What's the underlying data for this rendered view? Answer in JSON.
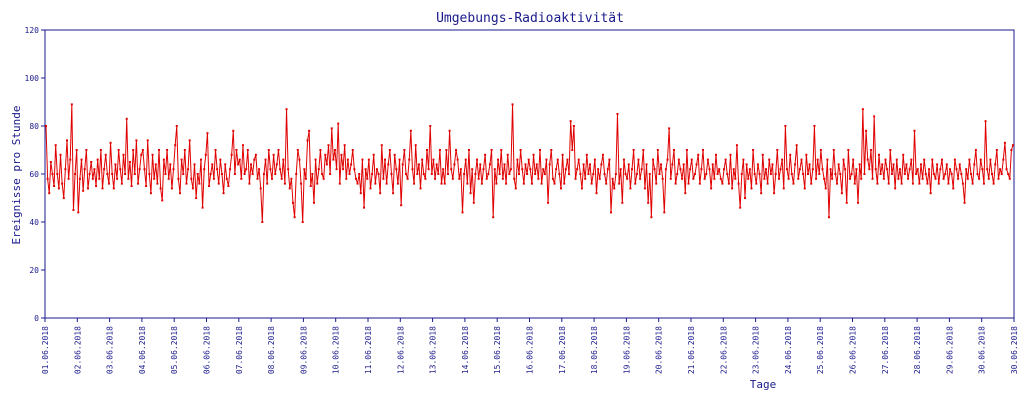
{
  "chart_data": {
    "type": "line",
    "title": "Umgebungs-Radioaktivität",
    "xlabel": "Tage",
    "ylabel": "Ereignisse pro Stunde",
    "ylim": [
      0,
      120
    ],
    "yticks": [
      0,
      20,
      40,
      60,
      80,
      100,
      120
    ],
    "xticks": [
      "01.06.2018",
      "02.06.2018",
      "03.06.2018",
      "04.06.2018",
      "05.06.2018",
      "06.06.2018",
      "07.06.2018",
      "08.06.2018",
      "09.06.2018",
      "10.06.2018",
      "11.06.2018",
      "12.06.2018",
      "13.06.2018",
      "14.06.2018",
      "15.06.2018",
      "16.06.2018",
      "17.06.2018",
      "18.06.2018",
      "19.06.2018",
      "20.06.2018",
      "21.06.2018",
      "22.06.2018",
      "23.06.2018",
      "24.06.2018",
      "25.06.2018",
      "26.06.2018",
      "27.06.2018",
      "28.06.2018",
      "29.06.2018",
      "30.06.2018",
      "30.06.2018"
    ],
    "grid": false,
    "colors": {
      "line": "#e00000",
      "axes": "#1a1a8c",
      "text": "#1a1a8c"
    },
    "series": [
      {
        "values": [
          80,
          58,
          52,
          65,
          60,
          55,
          72,
          60,
          54,
          68,
          56,
          50,
          62,
          74,
          58,
          66,
          89,
          45,
          60,
          70,
          44,
          58,
          66,
          53,
          62,
          70,
          54,
          60,
          65,
          58,
          62,
          55,
          66,
          58,
          70,
          54,
          62,
          68,
          60,
          56,
          73,
          60,
          54,
          64,
          58,
          70,
          62,
          56,
          68,
          60,
          83,
          58,
          65,
          55,
          70,
          60,
          74,
          56,
          62,
          68,
          70,
          62,
          55,
          74,
          60,
          52,
          68,
          58,
          64,
          56,
          70,
          54,
          49,
          66,
          60,
          70,
          58,
          64,
          54,
          62,
          72,
          80,
          58,
          52,
          66,
          60,
          70,
          56,
          62,
          74,
          58,
          54,
          64,
          50,
          60,
          56,
          66,
          46,
          62,
          68,
          77,
          55,
          60,
          64,
          58,
          70,
          62,
          56,
          66,
          60,
          52,
          64,
          58,
          55,
          62,
          68,
          78,
          60,
          70,
          64,
          66,
          58,
          72,
          60,
          62,
          70,
          56,
          64,
          60,
          66,
          68,
          58,
          62,
          54,
          40,
          60,
          66,
          56,
          70,
          62,
          58,
          68,
          60,
          64,
          70,
          62,
          58,
          66,
          56,
          87,
          62,
          54,
          58,
          48,
          42,
          60,
          70,
          66,
          56,
          40,
          62,
          58,
          74,
          78,
          55,
          60,
          48,
          66,
          56,
          62,
          70,
          60,
          58,
          68,
          64,
          72,
          60,
          79,
          66,
          70,
          62,
          81,
          56,
          68,
          62,
          72,
          58,
          66,
          60,
          64,
          70,
          62,
          58,
          56,
          60,
          52,
          66,
          46,
          62,
          58,
          66,
          54,
          60,
          68,
          56,
          62,
          60,
          52,
          72,
          58,
          66,
          56,
          64,
          70,
          60,
          52,
          68,
          62,
          56,
          66,
          47,
          64,
          70,
          60,
          58,
          66,
          78,
          62,
          56,
          72,
          60,
          64,
          54,
          66,
          60,
          58,
          70,
          62,
          80,
          60,
          66,
          58,
          64,
          60,
          70,
          56,
          62,
          56,
          70,
          60,
          78,
          62,
          58,
          64,
          70,
          66,
          58,
          62,
          44,
          60,
          66,
          56,
          70,
          52,
          62,
          48,
          60,
          66,
          58,
          64,
          56,
          62,
          68,
          58,
          60,
          64,
          70,
          42,
          62,
          56,
          66,
          60,
          70,
          58,
          64,
          56,
          68,
          60,
          62,
          89,
          58,
          54,
          66,
          60,
          70,
          62,
          56,
          64,
          60,
          66,
          62,
          56,
          68,
          60,
          64,
          58,
          70,
          56,
          62,
          60,
          66,
          48,
          64,
          70,
          58,
          56,
          62,
          66,
          60,
          54,
          68,
          56,
          62,
          66,
          60,
          82,
          70,
          80,
          58,
          62,
          66,
          60,
          54,
          64,
          58,
          68,
          60,
          64,
          56,
          60,
          66,
          52,
          62,
          58,
          64,
          68,
          60,
          56,
          62,
          66,
          44,
          58,
          54,
          60,
          85,
          56,
          62,
          48,
          66,
          60,
          58,
          64,
          54,
          62,
          70,
          56,
          60,
          66,
          58,
          62,
          70,
          54,
          64,
          48,
          60,
          42,
          66,
          62,
          56,
          70,
          60,
          64,
          58,
          44,
          62,
          66,
          79,
          58,
          64,
          70,
          56,
          60,
          66,
          62,
          58,
          64,
          52,
          70,
          56,
          62,
          66,
          58,
          60,
          64,
          68,
          56,
          62,
          70,
          58,
          60,
          66,
          62,
          54,
          64,
          58,
          68,
          60,
          62,
          58,
          56,
          62,
          66,
          60,
          56,
          68,
          54,
          62,
          58,
          72,
          56,
          46,
          60,
          66,
          50,
          64,
          58,
          62,
          54,
          70,
          60,
          56,
          64,
          60,
          52,
          68,
          58,
          62,
          56,
          66,
          60,
          64,
          52,
          60,
          70,
          58,
          62,
          66,
          54,
          80,
          62,
          58,
          68,
          60,
          56,
          64,
          72,
          58,
          62,
          66,
          60,
          54,
          68,
          60,
          64,
          56,
          62,
          80,
          58,
          66,
          60,
          70,
          62,
          58,
          54,
          66,
          42,
          62,
          58,
          70,
          60,
          56,
          64,
          60,
          52,
          66,
          62,
          48,
          70,
          58,
          60,
          66,
          56,
          62,
          48,
          64,
          58,
          87,
          60,
          78,
          66,
          62,
          70,
          58,
          84,
          62,
          56,
          68,
          60,
          64,
          58,
          66,
          62,
          56,
          70,
          60,
          64,
          54,
          66,
          58,
          62,
          56,
          68,
          60,
          64,
          58,
          62,
          66,
          56,
          78,
          60,
          62,
          56,
          64,
          58,
          66,
          60,
          56,
          62,
          52,
          66,
          60,
          58,
          64,
          56,
          62,
          66,
          58,
          60,
          64,
          56,
          62,
          60,
          54,
          66,
          62,
          58,
          64,
          60,
          56,
          48,
          62,
          58,
          66,
          60,
          56,
          64,
          70,
          60,
          58,
          66,
          62,
          56,
          82,
          62,
          58,
          66,
          60,
          56,
          64,
          70,
          58,
          62,
          60,
          66,
          73,
          62,
          60,
          58,
          70,
          72
        ]
      }
    ]
  }
}
